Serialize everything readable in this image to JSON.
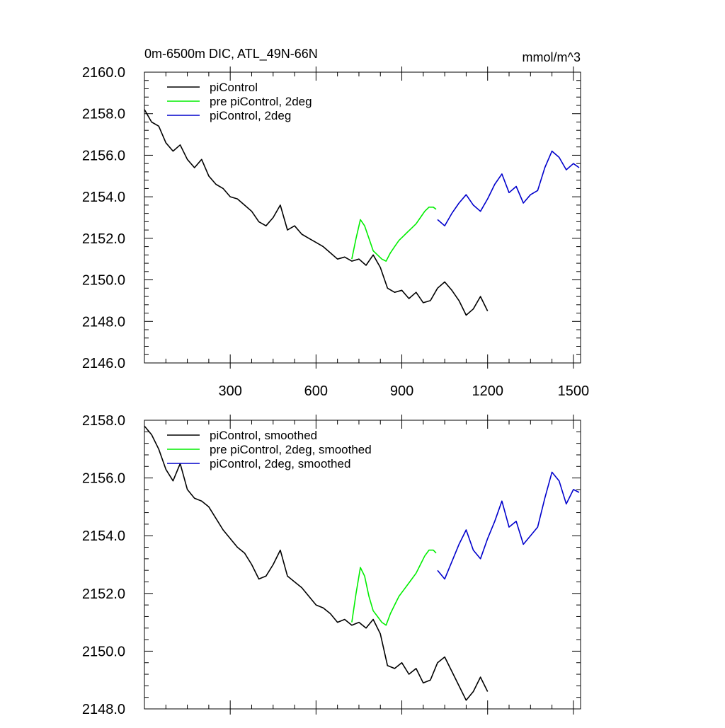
{
  "chart_data": [
    {
      "type": "line",
      "title": "0m-6500m DIC, ATL_49N-66N",
      "units": "mmol/m^3",
      "xlim": [
        0,
        1525
      ],
      "ylim": [
        2146,
        2160
      ],
      "xticks": [
        300,
        600,
        900,
        1200,
        1500
      ],
      "xtick_labels": [
        "300",
        "600",
        "900",
        "1200",
        "1500"
      ],
      "yticks": [
        2146,
        2148,
        2150,
        2152,
        2154,
        2156,
        2158,
        2160
      ],
      "ytick_labels": [
        "2146.0",
        "2148.0",
        "2150.0",
        "2152.0",
        "2154.0",
        "2156.0",
        "2158.0",
        "2160.0"
      ],
      "legend_position": "top-left",
      "series": [
        {
          "name": "piControl",
          "color": "#000000",
          "x": [
            0,
            25,
            50,
            75,
            100,
            125,
            150,
            175,
            200,
            225,
            250,
            275,
            300,
            325,
            350,
            375,
            400,
            425,
            450,
            475,
            500,
            525,
            550,
            575,
            600,
            625,
            650,
            675,
            700,
            725,
            750,
            775,
            800,
            825,
            850,
            875,
            900,
            925,
            950,
            975,
            1000,
            1025,
            1050,
            1075,
            1100,
            1125,
            1150,
            1175,
            1200
          ],
          "y": [
            2158.2,
            2157.6,
            2157.4,
            2156.6,
            2156.2,
            2156.5,
            2155.8,
            2155.4,
            2155.8,
            2155.0,
            2154.6,
            2154.4,
            2154.0,
            2153.9,
            2153.6,
            2153.3,
            2152.8,
            2152.6,
            2153.0,
            2153.6,
            2152.4,
            2152.6,
            2152.2,
            2152.0,
            2151.8,
            2151.6,
            2151.3,
            2151.0,
            2151.1,
            2150.9,
            2151.0,
            2150.7,
            2151.2,
            2150.6,
            2149.6,
            2149.4,
            2149.5,
            2149.1,
            2149.4,
            2148.9,
            2149.0,
            2149.6,
            2149.9,
            2149.5,
            2149.0,
            2148.3,
            2148.6,
            2149.2,
            2148.5
          ]
        },
        {
          "name": "pre piControl, 2deg",
          "color": "#00ee00",
          "x": [
            725,
            740,
            755,
            770,
            785,
            800,
            815,
            830,
            845,
            860,
            875,
            890,
            905,
            920,
            935,
            950,
            965,
            980,
            995,
            1010,
            1020
          ],
          "y": [
            2151.0,
            2152.0,
            2152.9,
            2152.6,
            2152.0,
            2151.4,
            2151.2,
            2151.0,
            2150.9,
            2151.3,
            2151.6,
            2151.9,
            2152.1,
            2152.3,
            2152.5,
            2152.7,
            2153.0,
            2153.3,
            2153.5,
            2153.5,
            2153.4
          ]
        },
        {
          "name": "piControl, 2deg",
          "color": "#0000cc",
          "x": [
            1025,
            1050,
            1075,
            1100,
            1125,
            1150,
            1175,
            1200,
            1225,
            1250,
            1275,
            1300,
            1325,
            1350,
            1375,
            1400,
            1425,
            1450,
            1475,
            1500,
            1520
          ],
          "y": [
            2152.9,
            2152.6,
            2153.2,
            2153.7,
            2154.1,
            2153.6,
            2153.3,
            2153.9,
            2154.6,
            2155.1,
            2154.2,
            2154.5,
            2153.7,
            2154.1,
            2154.3,
            2155.4,
            2156.2,
            2155.9,
            2155.3,
            2155.6,
            2155.4
          ]
        }
      ]
    },
    {
      "type": "line",
      "xlim": [
        0,
        1525
      ],
      "ylim": [
        2148,
        2158
      ],
      "xticks": [
        300,
        600,
        900,
        1200,
        1500
      ],
      "yticks": [
        2148,
        2150,
        2152,
        2154,
        2156,
        2158
      ],
      "ytick_labels": [
        "2148.0",
        "2150.0",
        "2152.0",
        "2154.0",
        "2156.0",
        "2158.0"
      ],
      "legend_position": "top-left",
      "series": [
        {
          "name": "piControl, smoothed",
          "color": "#000000",
          "x": [
            0,
            25,
            50,
            75,
            100,
            125,
            150,
            175,
            200,
            225,
            250,
            275,
            300,
            325,
            350,
            375,
            400,
            425,
            450,
            475,
            500,
            525,
            550,
            575,
            600,
            625,
            650,
            675,
            700,
            725,
            750,
            775,
            800,
            825,
            850,
            875,
            900,
            925,
            950,
            975,
            1000,
            1025,
            1050,
            1075,
            1100,
            1125,
            1150,
            1175,
            1200
          ],
          "y": [
            2157.8,
            2157.5,
            2157.0,
            2156.3,
            2155.9,
            2156.5,
            2155.6,
            2155.3,
            2155.2,
            2155.0,
            2154.6,
            2154.2,
            2153.9,
            2153.6,
            2153.4,
            2153.0,
            2152.5,
            2152.6,
            2153.0,
            2153.5,
            2152.6,
            2152.4,
            2152.2,
            2151.9,
            2151.6,
            2151.5,
            2151.3,
            2151.0,
            2151.1,
            2150.9,
            2151.0,
            2150.8,
            2151.1,
            2150.6,
            2149.5,
            2149.4,
            2149.6,
            2149.2,
            2149.4,
            2148.9,
            2149.0,
            2149.6,
            2149.8,
            2149.3,
            2148.8,
            2148.3,
            2148.6,
            2149.1,
            2148.6
          ]
        },
        {
          "name": "pre piControl, 2deg, smoothed",
          "color": "#00ee00",
          "x": [
            725,
            740,
            755,
            770,
            785,
            800,
            815,
            830,
            845,
            860,
            875,
            890,
            905,
            920,
            935,
            950,
            965,
            980,
            995,
            1010,
            1020
          ],
          "y": [
            2151.0,
            2152.0,
            2152.9,
            2152.6,
            2151.9,
            2151.4,
            2151.2,
            2151.0,
            2150.9,
            2151.3,
            2151.6,
            2151.9,
            2152.1,
            2152.3,
            2152.5,
            2152.7,
            2153.0,
            2153.3,
            2153.5,
            2153.5,
            2153.4
          ]
        },
        {
          "name": "piControl, 2deg, smoothed",
          "color": "#0000cc",
          "x": [
            1025,
            1050,
            1075,
            1100,
            1125,
            1150,
            1175,
            1200,
            1225,
            1250,
            1275,
            1300,
            1325,
            1350,
            1375,
            1400,
            1425,
            1450,
            1475,
            1500,
            1520
          ],
          "y": [
            2152.8,
            2152.5,
            2153.1,
            2153.7,
            2154.2,
            2153.5,
            2153.2,
            2153.9,
            2154.5,
            2155.2,
            2154.3,
            2154.5,
            2153.7,
            2154.0,
            2154.3,
            2155.3,
            2156.2,
            2155.9,
            2155.1,
            2155.6,
            2155.5
          ]
        }
      ]
    }
  ]
}
